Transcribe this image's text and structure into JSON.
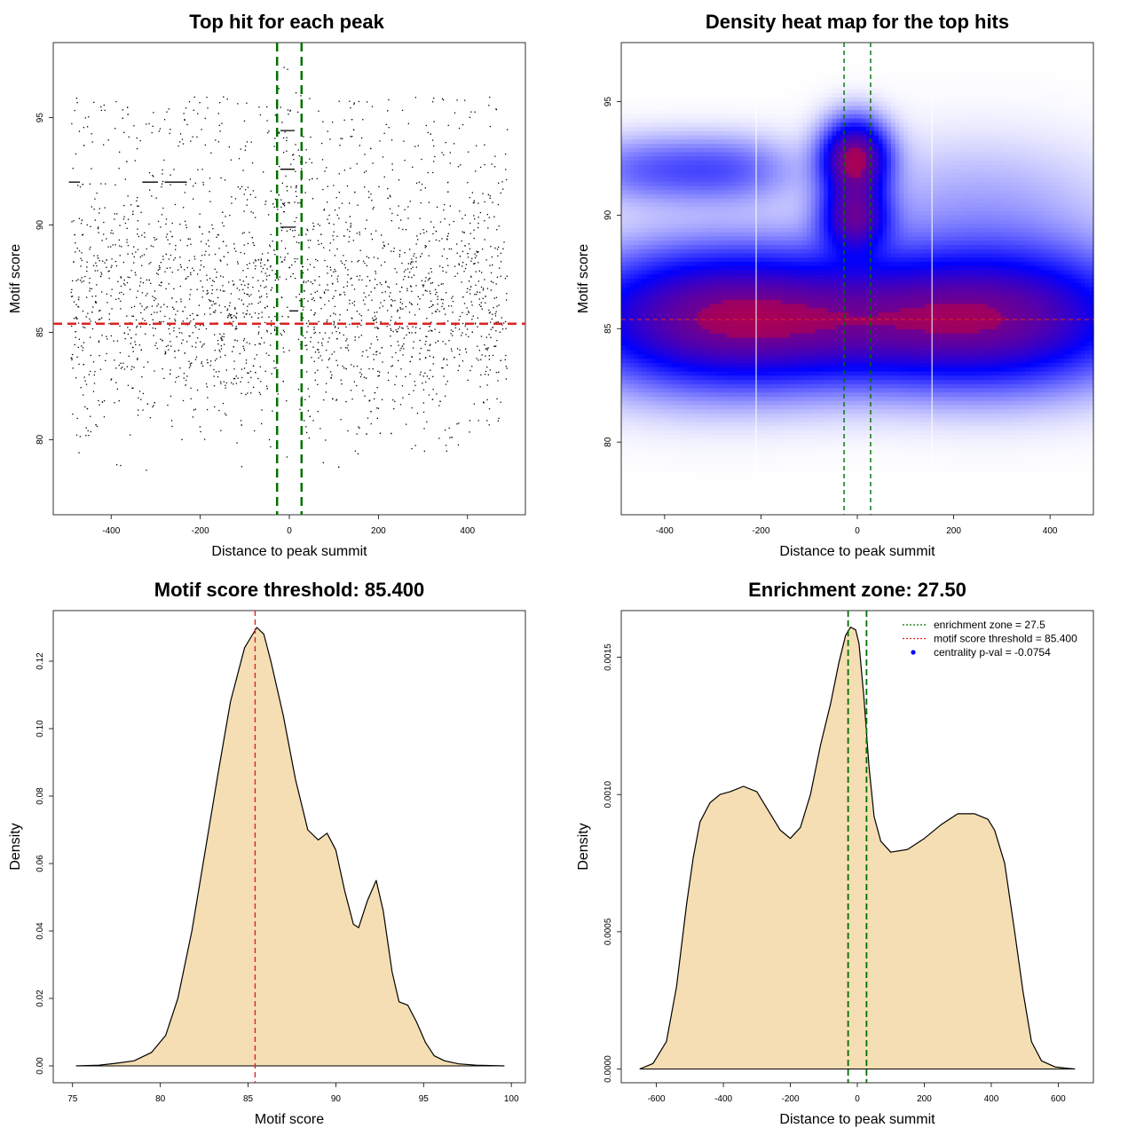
{
  "chart_data": [
    {
      "id": "scatter",
      "type": "scatter",
      "title": "Top hit for each peak",
      "xlabel": "Distance to peak summit",
      "ylabel": "Motif score",
      "xlim": [
        -530,
        530
      ],
      "ylim": [
        76.5,
        98.5
      ],
      "xticks": [
        -400,
        -200,
        0,
        200,
        400
      ],
      "yticks": [
        80,
        85,
        90,
        95
      ],
      "xtick_labels": [
        "-400",
        "-200",
        "0",
        "200",
        "400"
      ],
      "ytick_labels": [
        "80",
        "85",
        "90",
        "95"
      ],
      "n_points": 2500,
      "x_range": [
        -490,
        490
      ],
      "score_threshold": 85.4,
      "enrichment_zone": [
        -27.5,
        27.5
      ],
      "threshold_color": "#dd2222",
      "zone_color": "#007000",
      "point_color": "#000000"
    },
    {
      "id": "heatmap",
      "type": "heatmap",
      "title": "Density heat map for the top hits",
      "xlabel": "Distance to peak summit",
      "ylabel": "Motif score",
      "xlim": [
        -490,
        490
      ],
      "ylim": [
        76.8,
        97.6
      ],
      "xticks": [
        -400,
        -200,
        0,
        200,
        400
      ],
      "yticks": [
        80,
        85,
        90,
        95
      ],
      "xtick_labels": [
        "-400",
        "-200",
        "0",
        "200",
        "400"
      ],
      "ytick_labels": [
        "80",
        "85",
        "90",
        "95"
      ],
      "score_threshold": 85.4,
      "enrichment_zone": [
        -27.5,
        27.5
      ],
      "white_lines_x": [
        -210,
        155
      ],
      "blobs": [
        {
          "x": -5,
          "y": 92.5,
          "sx": 45,
          "sy": 1.1,
          "w": 1.0
        },
        {
          "x": -5,
          "y": 89.9,
          "sx": 45,
          "sy": 1.0,
          "w": 0.75
        },
        {
          "x": -300,
          "y": 85.5,
          "sx": 200,
          "sy": 2.0,
          "w": 0.8
        },
        {
          "x": 300,
          "y": 85.5,
          "sx": 200,
          "sy": 2.0,
          "w": 0.75
        },
        {
          "x": 0,
          "y": 85.3,
          "sx": 230,
          "sy": 1.7,
          "w": 0.45
        },
        {
          "x": -420,
          "y": 92.0,
          "sx": 120,
          "sy": 1.0,
          "w": 0.25
        },
        {
          "x": -250,
          "y": 92.0,
          "sx": 90,
          "sy": 1.0,
          "w": 0.18
        },
        {
          "x": 250,
          "y": 90.5,
          "sx": 200,
          "sy": 2.0,
          "w": 0.12
        }
      ],
      "color_scale": [
        "#ffffff",
        "#0000ff",
        "#ff0000"
      ]
    },
    {
      "id": "score-density",
      "type": "area",
      "title": "Motif score threshold: 85.400",
      "xlabel": "Motif score",
      "ylabel": "Density",
      "xlim": [
        73.9,
        100.8
      ],
      "ylim": [
        -0.005,
        0.135
      ],
      "xticks": [
        75,
        80,
        85,
        90,
        95,
        100
      ],
      "yticks": [
        0.0,
        0.02,
        0.04,
        0.06,
        0.08,
        0.1,
        0.12
      ],
      "xtick_labels": [
        "75",
        "80",
        "85",
        "90",
        "95",
        "100"
      ],
      "ytick_labels": [
        "0.00",
        "0.02",
        "0.04",
        "0.06",
        "0.08",
        "0.10",
        "0.12"
      ],
      "x": [
        75.2,
        76.5,
        77.5,
        78.5,
        79.5,
        80.3,
        81.0,
        81.8,
        82.5,
        83.3,
        84.0,
        84.8,
        85.5,
        85.9,
        86.3,
        87.0,
        87.7,
        88.4,
        89.0,
        89.5,
        90.0,
        90.5,
        91.0,
        91.3,
        91.8,
        92.3,
        92.7,
        93.2,
        93.6,
        94.1,
        94.6,
        95.1,
        95.6,
        96.2,
        97.0,
        98.0,
        99.6
      ],
      "y": [
        0.0,
        0.0002,
        0.0008,
        0.0015,
        0.004,
        0.009,
        0.02,
        0.04,
        0.062,
        0.087,
        0.108,
        0.124,
        0.13,
        0.128,
        0.12,
        0.104,
        0.085,
        0.07,
        0.067,
        0.069,
        0.064,
        0.052,
        0.042,
        0.041,
        0.049,
        0.055,
        0.046,
        0.028,
        0.019,
        0.018,
        0.013,
        0.007,
        0.003,
        0.0015,
        0.0006,
        0.0002,
        0.0
      ],
      "threshold": 85.4,
      "fill_color": "#f5deb3",
      "threshold_color": "#dd2222"
    },
    {
      "id": "distance-density",
      "type": "area",
      "title": "Enrichment zone: 27.50",
      "xlabel": "Distance to peak summit",
      "ylabel": "Density",
      "xlim": [
        -705,
        705
      ],
      "ylim": [
        -5e-05,
        0.00167
      ],
      "xticks": [
        -600,
        -400,
        -200,
        0,
        200,
        400,
        600
      ],
      "yticks": [
        0.0,
        0.0005,
        0.001,
        0.0015
      ],
      "xtick_labels": [
        "-600",
        "-400",
        "-200",
        "0",
        "200",
        "400",
        "600"
      ],
      "ytick_labels": [
        "0.0000",
        "0.0005",
        "0.0010",
        "0.0015"
      ],
      "x": [
        -650,
        -610,
        -570,
        -540,
        -510,
        -490,
        -470,
        -440,
        -410,
        -380,
        -340,
        -300,
        -260,
        -230,
        -200,
        -170,
        -140,
        -110,
        -80,
        -55,
        -35,
        -20,
        -5,
        5,
        20,
        35,
        50,
        70,
        100,
        150,
        200,
        250,
        300,
        350,
        390,
        410,
        440,
        470,
        495,
        520,
        550,
        590,
        630,
        650
      ],
      "y": [
        0.0,
        2e-05,
        0.0001,
        0.0003,
        0.0006,
        0.00077,
        0.0009,
        0.00097,
        0.001,
        0.00101,
        0.00103,
        0.00101,
        0.00093,
        0.00087,
        0.00084,
        0.00088,
        0.001,
        0.00118,
        0.00133,
        0.00148,
        0.00158,
        0.00161,
        0.0016,
        0.00155,
        0.00135,
        0.0011,
        0.00092,
        0.00083,
        0.00079,
        0.0008,
        0.00084,
        0.00089,
        0.00093,
        0.00093,
        0.00091,
        0.00087,
        0.00075,
        0.0005,
        0.00028,
        0.0001,
        3e-05,
        8e-06,
        2e-06,
        0.0
      ],
      "zone": [
        -27.5,
        27.5
      ],
      "fill_color": "#f5deb3",
      "zone_color": "#007000",
      "legend": [
        {
          "label": "enrichment zone = 27.5",
          "color": "#007000",
          "kind": "line"
        },
        {
          "label": "motif score threshold = 85.400",
          "color": "#dd2222",
          "kind": "line"
        },
        {
          "label": "centrality p-val = -0.0754",
          "color": "#0000ff",
          "kind": "point"
        }
      ]
    }
  ]
}
